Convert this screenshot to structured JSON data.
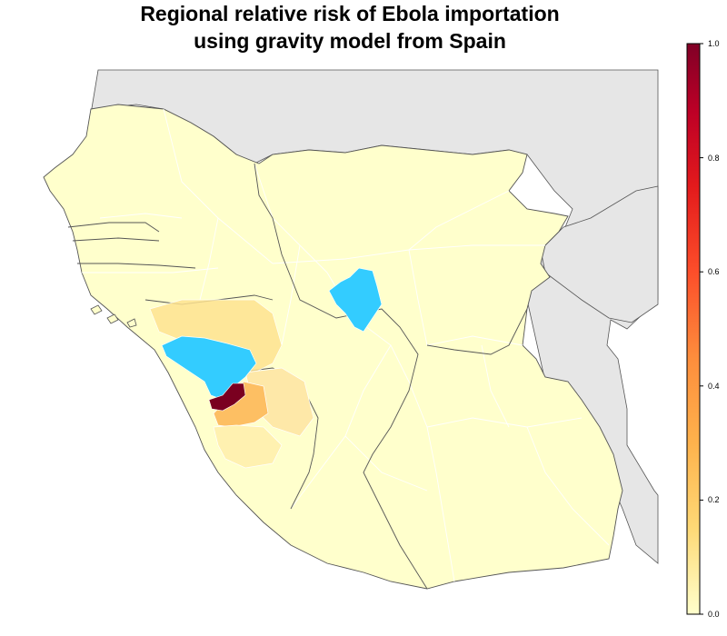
{
  "map": {
    "title_line1": "Regional relative risk of Ebola importation",
    "title_line2": "using gravity model from Spain",
    "colors": {
      "background_land": "#e6e6e6",
      "low_risk": "#ffffcc",
      "light_risk": "#fff1b0",
      "medium_low_risk": "#fee391",
      "medium_risk": "#fdbf63",
      "high_risk": "#8b0026",
      "no_data": "#33ccff",
      "borders": "#555555"
    },
    "legend": {
      "min": 0.0,
      "max": 1.0,
      "ticks": [
        "0.0",
        "0.2",
        "0.4",
        "0.6",
        "0.8",
        "1.0"
      ],
      "gradient_colors": [
        "#ffffcc",
        "#fed976",
        "#feb24c",
        "#fd8d3c",
        "#fc4e2a",
        "#e31a1c",
        "#bd0026",
        "#800026"
      ]
    },
    "highlighted_regions": [
      {
        "role": "highest-risk",
        "value": 1.0
      },
      {
        "role": "no-data-blue",
        "value": null
      }
    ]
  }
}
